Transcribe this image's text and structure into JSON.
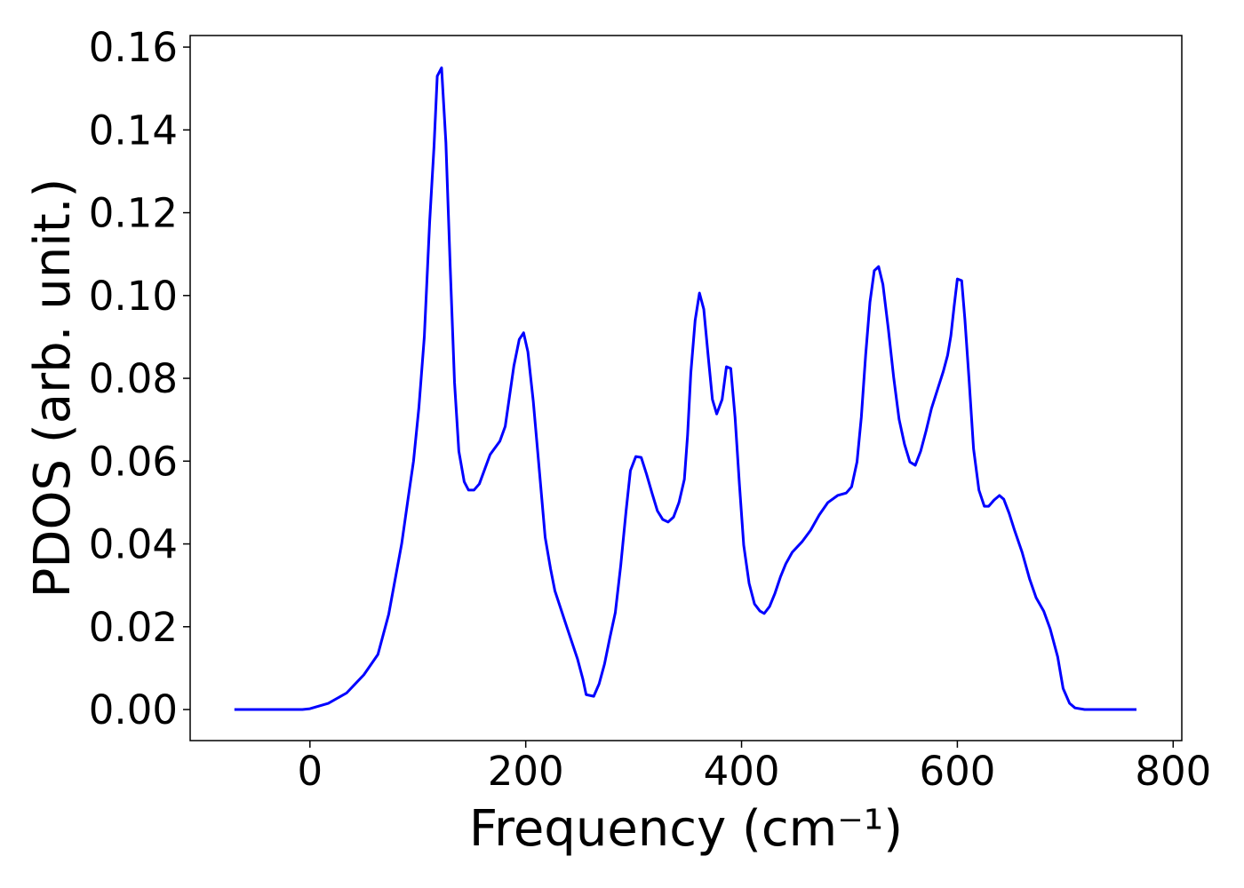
{
  "chart_data": {
    "type": "line",
    "xlabel": "Frequency (cm⁻¹)",
    "ylabel": "PDOS (arb. unit.)",
    "color": "#0000ff",
    "x": [
      -70,
      -7,
      0,
      17,
      34,
      50,
      63,
      73,
      85,
      91,
      96,
      101,
      106,
      111,
      115,
      118,
      122,
      126,
      130,
      134,
      138,
      143,
      147,
      152,
      157,
      167,
      176,
      181,
      189,
      194,
      198,
      202,
      207,
      213,
      218,
      223,
      227,
      238,
      248,
      253,
      256,
      263,
      268,
      273,
      278,
      283,
      288,
      293,
      297,
      302,
      307,
      312,
      317,
      322,
      327,
      332,
      337,
      342,
      347,
      350,
      353,
      357,
      361,
      365,
      369,
      373,
      377,
      382,
      386,
      390,
      394,
      398,
      402,
      407,
      412,
      417,
      421,
      426,
      431,
      436,
      441,
      447,
      456,
      464,
      472,
      480,
      489,
      497,
      502,
      507,
      511,
      515,
      519,
      523,
      527,
      531,
      536,
      541,
      546,
      551,
      556,
      561,
      566,
      571,
      576,
      582,
      587,
      591,
      594,
      597,
      600,
      604,
      607,
      611,
      615,
      620,
      625,
      629,
      634,
      639,
      643,
      648,
      653,
      660,
      667,
      673,
      680,
      686,
      693,
      698,
      704,
      709,
      718,
      766
    ],
    "values": [
      0,
      0,
      0.0002,
      0.0015,
      0.004,
      0.0084,
      0.0133,
      0.023,
      0.04,
      0.051,
      0.06,
      0.073,
      0.09,
      0.118,
      0.136,
      0.153,
      0.155,
      0.137,
      0.107,
      0.079,
      0.0624,
      0.055,
      0.053,
      0.053,
      0.0545,
      0.0616,
      0.0648,
      0.0684,
      0.083,
      0.0894,
      0.091,
      0.0864,
      0.0744,
      0.0566,
      0.0416,
      0.034,
      0.0287,
      0.02,
      0.0122,
      0.0073,
      0.0036,
      0.0032,
      0.0062,
      0.011,
      0.0174,
      0.0234,
      0.0347,
      0.048,
      0.0577,
      0.0611,
      0.0609,
      0.0568,
      0.0523,
      0.048,
      0.0459,
      0.0453,
      0.0465,
      0.05,
      0.0556,
      0.0663,
      0.0813,
      0.094,
      0.1006,
      0.0967,
      0.0856,
      0.0749,
      0.0714,
      0.0749,
      0.0828,
      0.0824,
      0.0706,
      0.0545,
      0.0397,
      0.0305,
      0.0255,
      0.0238,
      0.0232,
      0.0249,
      0.0281,
      0.032,
      0.0352,
      0.038,
      0.0405,
      0.0433,
      0.047,
      0.05,
      0.0517,
      0.0523,
      0.0538,
      0.0598,
      0.0706,
      0.0856,
      0.0984,
      0.106,
      0.107,
      0.1027,
      0.092,
      0.0802,
      0.0701,
      0.0641,
      0.0598,
      0.059,
      0.0624,
      0.0673,
      0.0727,
      0.0776,
      0.0817,
      0.0856,
      0.0903,
      0.0974,
      0.104,
      0.1036,
      0.0942,
      0.0791,
      0.063,
      0.053,
      0.0491,
      0.0491,
      0.0506,
      0.0517,
      0.0508,
      0.0474,
      0.0433,
      0.038,
      0.0315,
      0.027,
      0.0238,
      0.0195,
      0.0127,
      0.0051,
      0.0015,
      0.0004,
      0,
      0
    ],
    "xlim": [
      -111,
      808
    ],
    "ylim": [
      -0.0075,
      0.1628
    ],
    "xticks": [
      0,
      200,
      400,
      600,
      800
    ],
    "yticks": [
      {
        "value": 0,
        "label": "0.00"
      },
      {
        "value": 0.02,
        "label": "0.02"
      },
      {
        "value": 0.04,
        "label": "0.04"
      },
      {
        "value": 0.06,
        "label": "0.06"
      },
      {
        "value": 0.08,
        "label": "0.08"
      },
      {
        "value": 0.1,
        "label": "0.10"
      },
      {
        "value": 0.12,
        "label": "0.12"
      },
      {
        "value": 0.14,
        "label": "0.14"
      },
      {
        "value": 0.16,
        "label": "0.16"
      }
    ],
    "grid": false
  }
}
